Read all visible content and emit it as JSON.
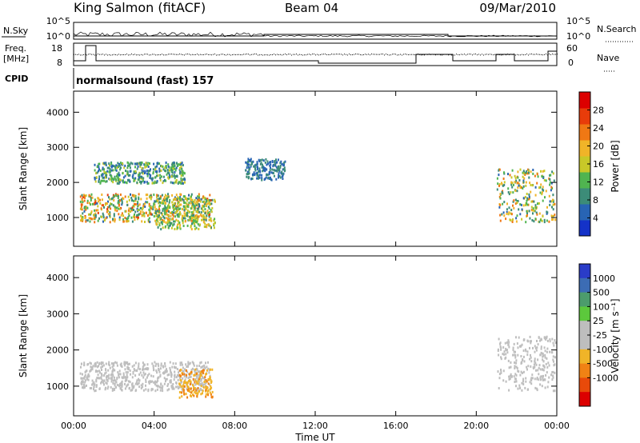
{
  "header": {
    "station": "King Salmon (fitACF)",
    "beam": "Beam 04",
    "date": "09/Mar/2010"
  },
  "status_panel": {
    "nsky_label": "N.Sky",
    "nsky_ticks": [
      "10^5",
      "10^0"
    ],
    "nsearch_label": "N.Search",
    "nsearch_ticks": [
      "10^5",
      "10^0"
    ],
    "freq_label": "Freq.",
    "freq_unit": "[MHz]",
    "freq_ticks": [
      "18",
      "8"
    ],
    "nave_label": "Nave",
    "nave_ticks": [
      "60",
      "0"
    ],
    "cpid_label": "CPID",
    "cpid_value": "normalsound (fast) 157"
  },
  "colors": {
    "power_scale": [
      "#1432c8",
      "#2864b4",
      "#3c8c78",
      "#50b450",
      "#c8c828",
      "#f0b428",
      "#f07814",
      "#e83c0a",
      "#dc0000"
    ],
    "velocity_scale": [
      "#2a3cc8",
      "#3c6cb4",
      "#4c9c6c",
      "#5cc83c",
      "#bebebe",
      "#bebebe",
      "#f0b428",
      "#f08214",
      "#e84a0a",
      "#dc0000"
    ]
  },
  "chart_data": [
    {
      "type": "heatmap",
      "title": "Power",
      "ylabel": "Slant Range [km]",
      "ylim": [
        180,
        4600
      ],
      "y_ticks": [
        "1000",
        "2000",
        "3000",
        "4000"
      ],
      "colorbar": {
        "label": "Power [dB]",
        "range": [
          0,
          32
        ],
        "ticks": [
          "28",
          "24",
          "20",
          "16",
          "12",
          "8",
          "4"
        ]
      },
      "echo_regions": [
        {
          "t_start": 0.3,
          "t_end": 6.8,
          "range_km": [
            900,
            1700
          ],
          "power_db": [
            6,
            26
          ]
        },
        {
          "t_start": 1.0,
          "t_end": 5.5,
          "range_km": [
            2000,
            2600
          ],
          "power_db": [
            4,
            16
          ]
        },
        {
          "t_start": 4.0,
          "t_end": 7.0,
          "range_km": [
            700,
            1600
          ],
          "power_db": [
            8,
            20
          ]
        },
        {
          "t_start": 8.5,
          "t_end": 10.5,
          "range_km": [
            2100,
            2700
          ],
          "power_db": [
            4,
            10
          ]
        },
        {
          "t_start": 21.0,
          "t_end": 23.9,
          "range_km": [
            900,
            2400
          ],
          "power_db": [
            6,
            24
          ]
        }
      ]
    },
    {
      "type": "heatmap",
      "title": "Velocity",
      "ylabel": "Slant Range [km]",
      "xlabel": "Time UT",
      "ylim": [
        180,
        4600
      ],
      "y_ticks": [
        "1000",
        "2000",
        "3000",
        "4000"
      ],
      "x_ticks": [
        "00:00",
        "04:00",
        "08:00",
        "12:00",
        "16:00",
        "20:00",
        "00:00"
      ],
      "xlim_hours": [
        0,
        24
      ],
      "colorbar": {
        "label": "Velocity [m s⁻¹]",
        "ticks": [
          "1000",
          "500",
          "100",
          "25",
          "-25",
          "-100",
          "-500",
          "-1000"
        ]
      },
      "echo_regions": [
        {
          "t_start": 0.3,
          "t_end": 6.8,
          "range_km": [
            900,
            1700
          ],
          "velocity": "-25 to 25"
        },
        {
          "t_start": 5.2,
          "t_end": 6.9,
          "range_km": [
            700,
            1500
          ],
          "velocity": "-100 to -500"
        },
        {
          "t_start": 21.0,
          "t_end": 23.9,
          "range_km": [
            900,
            2400
          ],
          "velocity": "-25 to 25"
        }
      ]
    }
  ]
}
